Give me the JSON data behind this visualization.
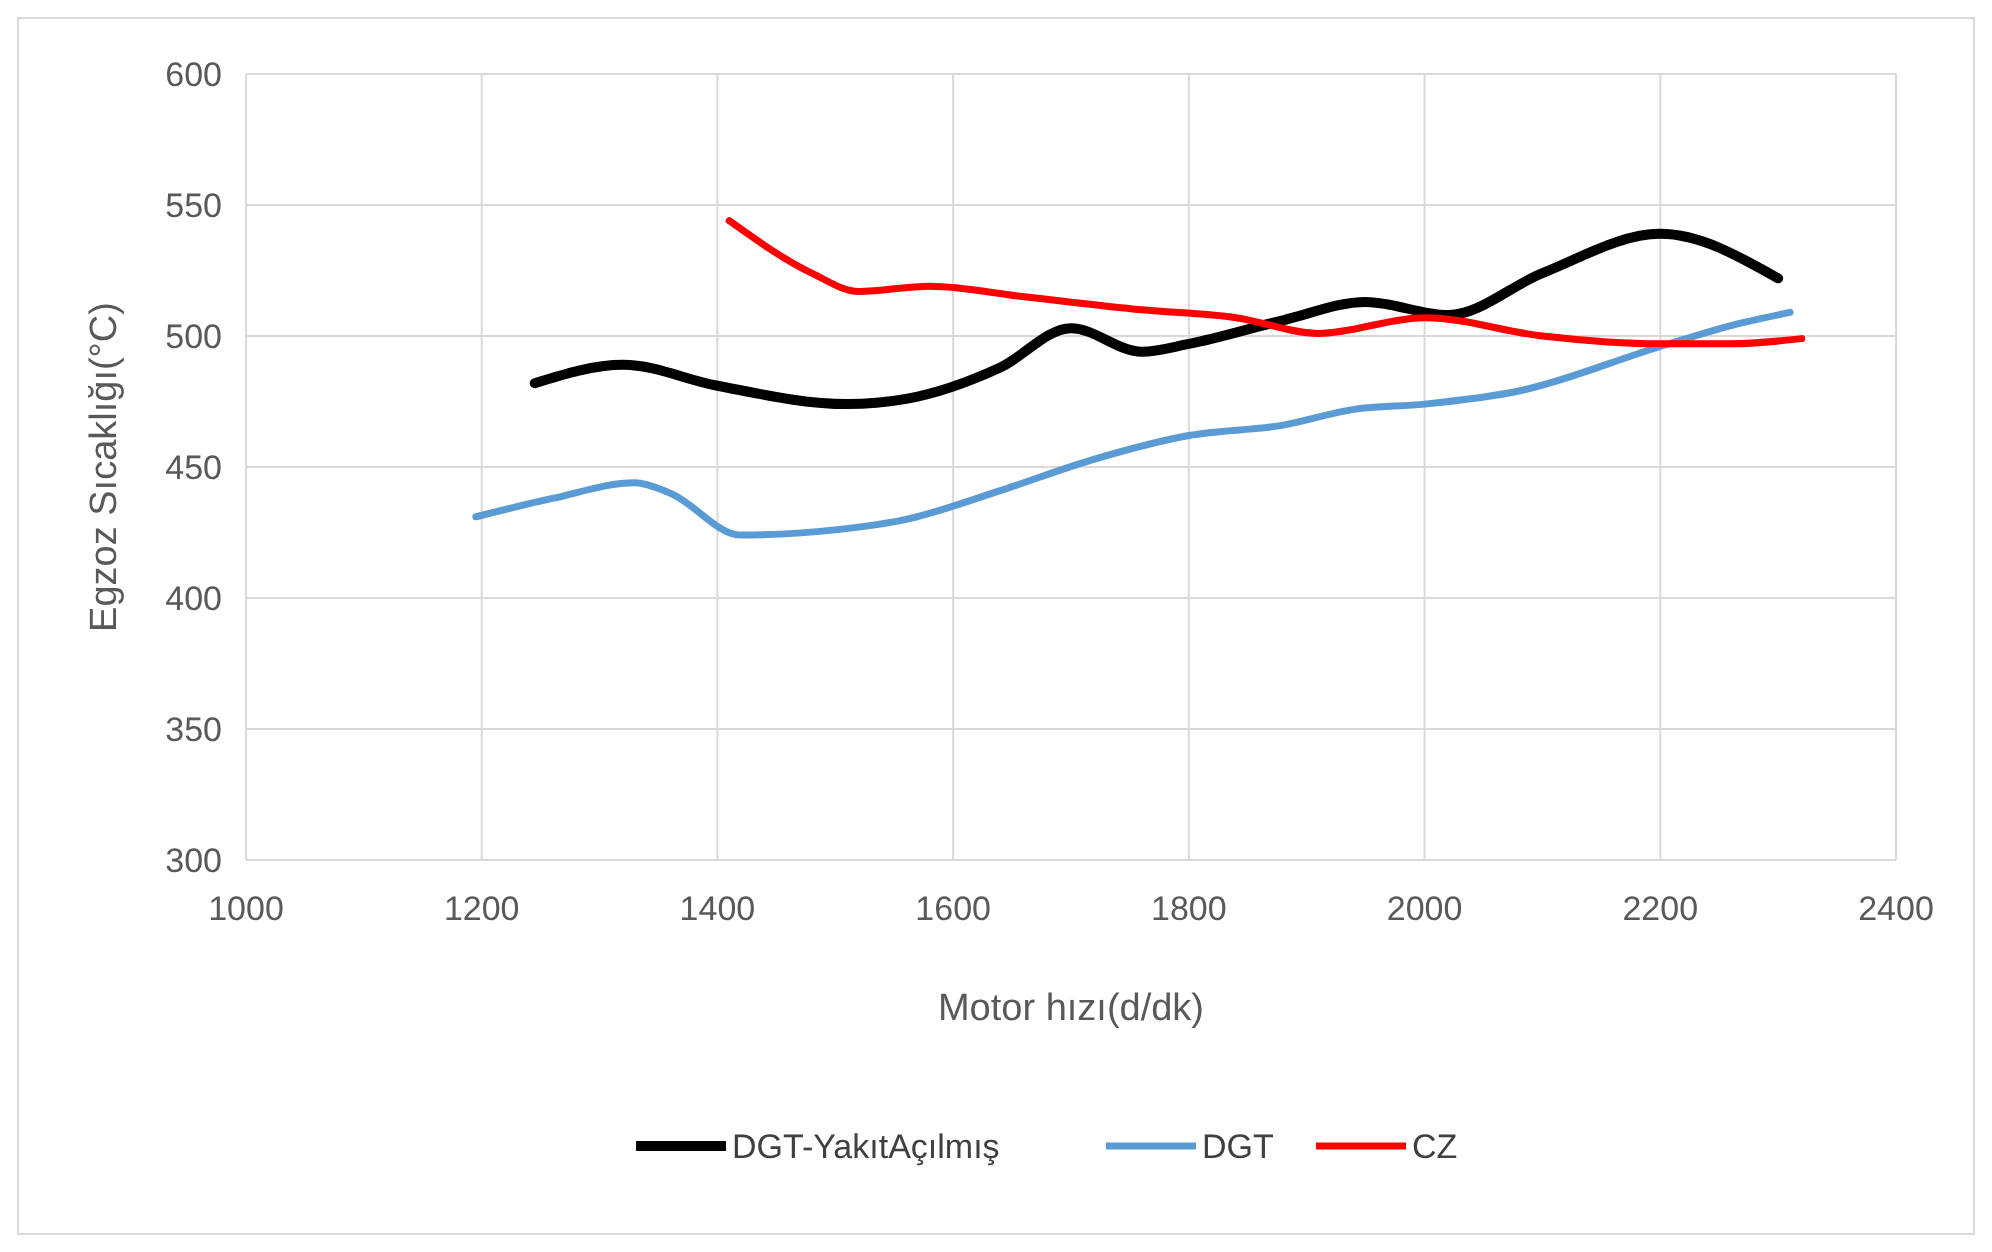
{
  "chart_data": {
    "type": "line",
    "xlabel": "Motor hızı(d/dk)",
    "ylabel": "Egzoz Sıcaklığı(°C)",
    "xlim": [
      1000,
      2400
    ],
    "xticks": [
      1000,
      1200,
      1400,
      1600,
      1800,
      2000,
      2200,
      2400
    ],
    "ylim": [
      300,
      600
    ],
    "yticks": [
      300,
      350,
      400,
      450,
      500,
      550,
      600
    ],
    "grid": true,
    "legend": "bottom",
    "marker": "none",
    "series": [
      {
        "name": "DGT-YakıtAçılmış",
        "color": "#000000",
        "x": [
          1245,
          1320,
          1400,
          1510,
          1560,
          1640,
          1700,
          1760,
          1800,
          1880,
          1950,
          2020,
          2100,
          2200,
          2300
        ],
        "values": [
          482,
          489,
          481,
          474,
          476,
          488,
          503,
          494,
          497,
          506,
          513,
          508,
          524,
          539,
          522
        ]
      },
      {
        "name": "DGT",
        "color": "#5b9bd5",
        "x": [
          1195,
          1260,
          1330,
          1360,
          1420,
          1500,
          1560,
          1640,
          1720,
          1800,
          1880,
          1940,
          2000,
          2080,
          2200,
          2260,
          2310
        ],
        "values": [
          431,
          438,
          444,
          440,
          424,
          426,
          430,
          441,
          453,
          462,
          466,
          472,
          474,
          479,
          496,
          504,
          509
        ]
      },
      {
        "name": "CZ",
        "color": "#ff0000",
        "x": [
          1410,
          1480,
          1520,
          1580,
          1660,
          1760,
          1840,
          1910,
          2000,
          2100,
          2200,
          2260,
          2320
        ],
        "values": [
          544,
          524,
          517,
          519,
          515,
          510,
          507,
          501,
          507,
          500,
          497,
          497,
          499
        ]
      }
    ]
  }
}
